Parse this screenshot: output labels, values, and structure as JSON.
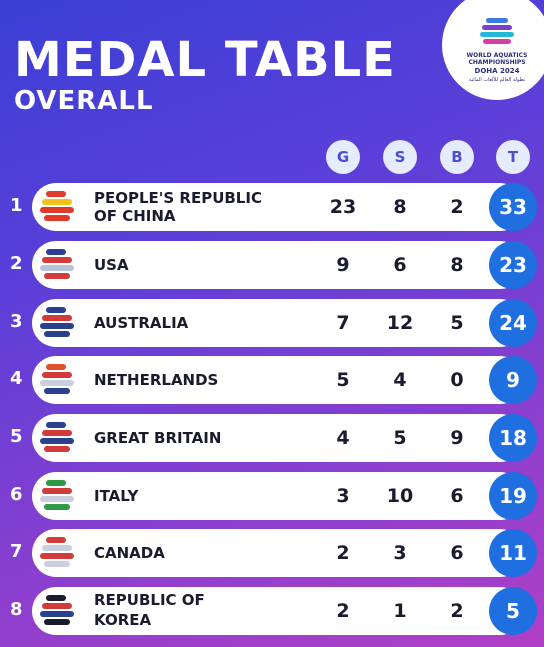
{
  "header": {
    "title": "MEDAL TABLE",
    "subtitle": "OVERALL"
  },
  "logo": {
    "line1": "WORLD AQUATICS",
    "line2": "CHAMPIONSHIPS",
    "line3": "DOHA 2024",
    "arabic": "بطولة العالم للألعاب المائية"
  },
  "columns": {
    "gold": "G",
    "silver": "S",
    "bronze": "B",
    "total": "T"
  },
  "colors": {
    "background_start": "#3a3fd6",
    "background_end": "#b03fc6",
    "total_circle": "#1f6fe0",
    "header_circle": "#e6ecff"
  },
  "rows": [
    {
      "rank": "1",
      "country_line1": "PEOPLE'S REPUBLIC",
      "country_line2": "OF CHINA",
      "gold": "23",
      "silver": "8",
      "bronze": "2",
      "total": "33",
      "flag_icon": "china-flag-icon"
    },
    {
      "rank": "2",
      "country_line1": "USA",
      "country_line2": "",
      "gold": "9",
      "silver": "6",
      "bronze": "8",
      "total": "23",
      "flag_icon": "usa-flag-icon"
    },
    {
      "rank": "3",
      "country_line1": "AUSTRALIA",
      "country_line2": "",
      "gold": "7",
      "silver": "12",
      "bronze": "5",
      "total": "24",
      "flag_icon": "australia-flag-icon"
    },
    {
      "rank": "4",
      "country_line1": "NETHERLANDS",
      "country_line2": "",
      "gold": "5",
      "silver": "4",
      "bronze": "0",
      "total": "9",
      "flag_icon": "netherlands-flag-icon"
    },
    {
      "rank": "5",
      "country_line1": "GREAT BRITAIN",
      "country_line2": "",
      "gold": "4",
      "silver": "5",
      "bronze": "9",
      "total": "18",
      "flag_icon": "great-britain-flag-icon"
    },
    {
      "rank": "6",
      "country_line1": "ITALY",
      "country_line2": "",
      "gold": "3",
      "silver": "10",
      "bronze": "6",
      "total": "19",
      "flag_icon": "italy-flag-icon"
    },
    {
      "rank": "7",
      "country_line1": "CANADA",
      "country_line2": "",
      "gold": "2",
      "silver": "3",
      "bronze": "6",
      "total": "11",
      "flag_icon": "canada-flag-icon"
    },
    {
      "rank": "8",
      "country_line1": "REPUBLIC OF",
      "country_line2": "KOREA",
      "gold": "2",
      "silver": "1",
      "bronze": "2",
      "total": "5",
      "flag_icon": "korea-flag-icon"
    }
  ]
}
